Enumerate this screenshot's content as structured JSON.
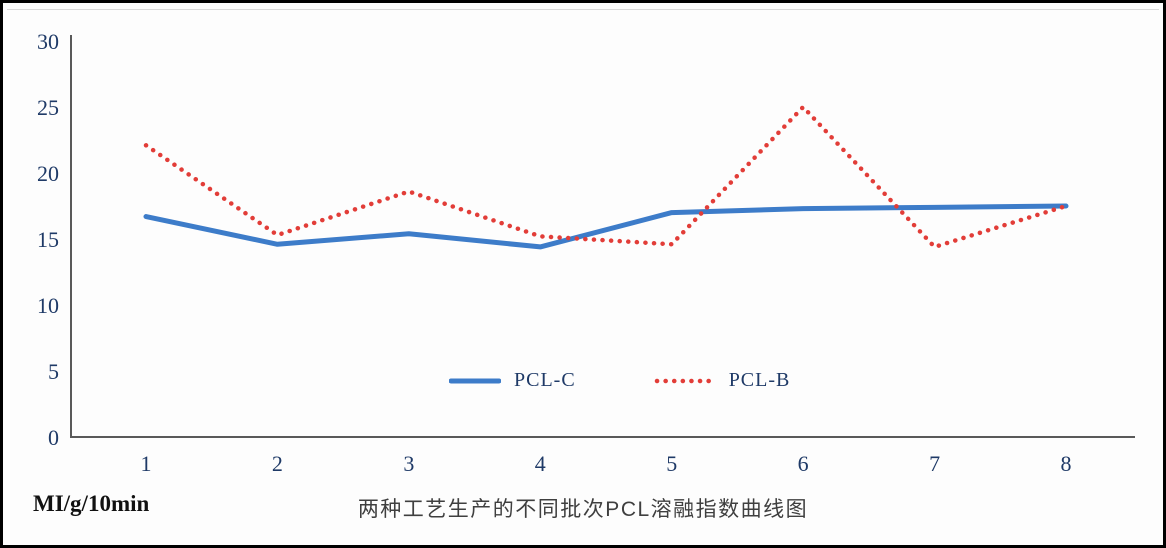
{
  "chart_data": {
    "type": "line",
    "x": [
      1,
      2,
      3,
      4,
      5,
      6,
      7,
      8
    ],
    "xticks": [
      1,
      2,
      3,
      4,
      5,
      6,
      7,
      8
    ],
    "yticks": [
      0,
      5,
      10,
      15,
      20,
      25,
      30
    ],
    "ylim": [
      0,
      30
    ],
    "series": [
      {
        "name": "PCL-C",
        "style": "solid",
        "color": "#3d7cc9",
        "values": [
          16.7,
          14.6,
          15.4,
          14.4,
          17.0,
          17.3,
          17.4,
          17.5
        ]
      },
      {
        "name": "PCL-B",
        "style": "dotted",
        "color": "#e23d38",
        "values": [
          22.1,
          15.3,
          18.6,
          15.2,
          14.6,
          25.0,
          14.4,
          17.5
        ]
      }
    ],
    "title": "两种工艺生产的不同批次PCL溶融指数曲线图",
    "ylabel": "MI/g/10min",
    "xlabel": "",
    "grid": false,
    "legend_position": "inside-bottom-center",
    "axis_color": "#595959",
    "tick_label_color": "#1f3a67",
    "title_color": "#3f3f3f",
    "legend_label_color": "#1f3a67"
  }
}
